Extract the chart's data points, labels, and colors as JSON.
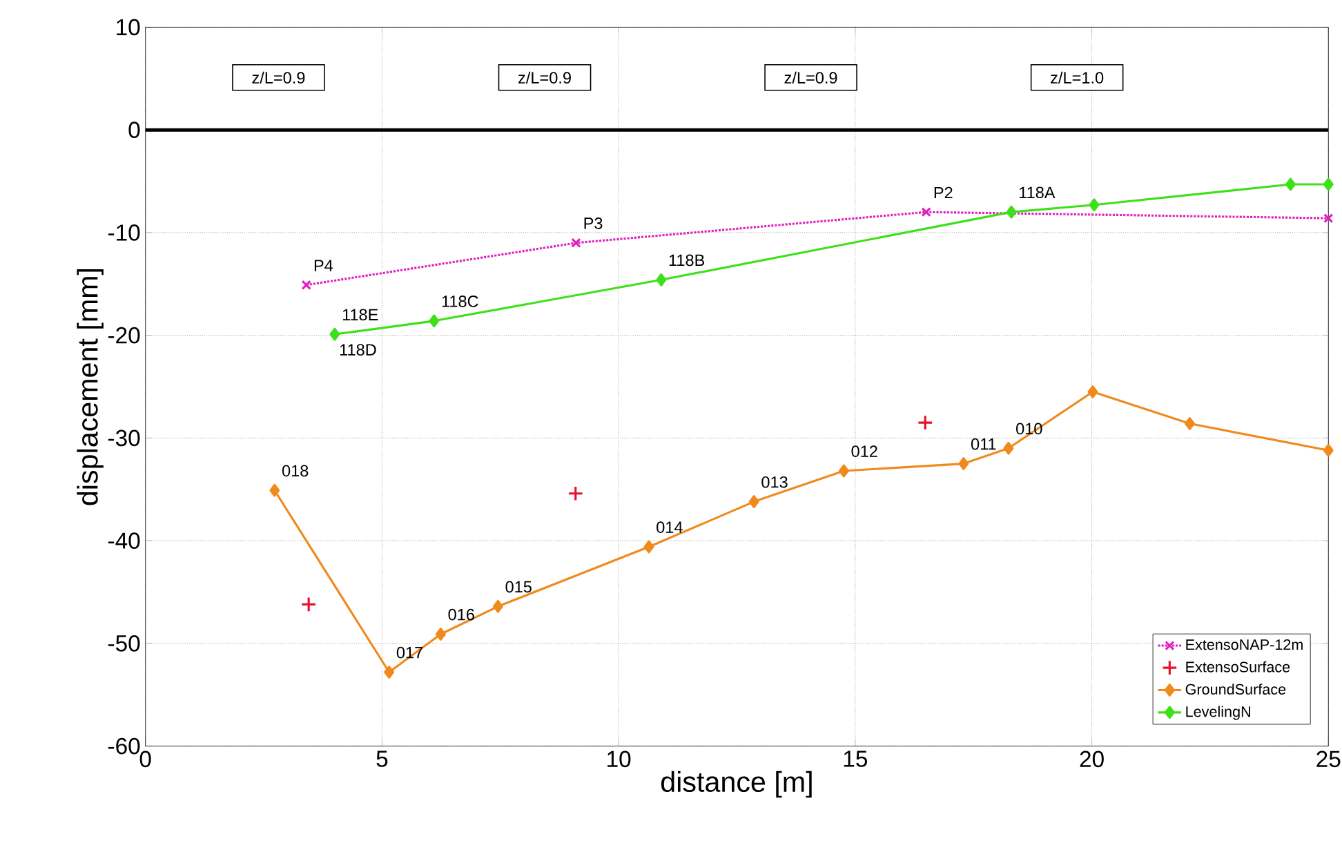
{
  "chart_data": {
    "type": "line",
    "xlabel": "distance [m]",
    "ylabel": "displacement [mm]",
    "xlim": [
      0,
      25
    ],
    "xticks": [
      0,
      5,
      10,
      15,
      20,
      25
    ],
    "ylim": [
      -60,
      10
    ],
    "yticks": [
      -60,
      -50,
      -40,
      -30,
      -20,
      -10,
      0,
      10
    ],
    "grid": true,
    "legend": "bottom right",
    "ref_lines": [
      {
        "axis": "y",
        "value": 0,
        "color": "#000000"
      }
    ],
    "series": [
      {
        "name": "ExtensoNAP-12m",
        "color": "#e020c0",
        "marker": "cross",
        "line_style": "dotted",
        "x": [
          3.4,
          9.1,
          16.5,
          25
        ],
        "values": [
          -15.1,
          -11.0,
          -8.0,
          -8.6
        ]
      },
      {
        "name": "ExtensoSurface",
        "type": "scatter",
        "color": "#e8102a",
        "marker": "cross",
        "x": [
          3.45,
          9.09,
          16.48
        ],
        "values": [
          -46.2,
          -35.4,
          -28.5
        ]
      },
      {
        "name": "GroundSurface",
        "color": "#f08a1c",
        "marker": "diamond",
        "line_style": "solid",
        "x": [
          2.73,
          5.15,
          6.24,
          7.45,
          10.64,
          12.86,
          14.76,
          17.29,
          18.24,
          20.02,
          22.07,
          25
        ],
        "values": [
          -35.1,
          -52.8,
          -49.1,
          -46.4,
          -40.6,
          -36.2,
          -33.2,
          -32.5,
          -31.0,
          -25.5,
          -28.6,
          -31.2
        ]
      },
      {
        "name": "LevelingN",
        "color": "#3ee01a",
        "marker": "diamond",
        "line_style": "solid",
        "x": [
          4.0,
          6.1,
          10.9,
          18.3,
          20.05,
          24.2,
          25
        ],
        "values": [
          -19.9,
          -18.6,
          -14.6,
          -8.0,
          -7.3,
          -5.3,
          -5.3
        ]
      }
    ],
    "annotations": [
      "z/L=0.9",
      "z/L=0.9",
      "z/L=0.9",
      "z/L=1.0",
      {
        "text": "P4",
        "x": 3.4,
        "y": -15.1
      },
      {
        "text": "P3",
        "x": 9.1,
        "y": -11.0
      },
      {
        "text": "P2",
        "x": 16.5,
        "y": -8.0
      },
      {
        "text": "118A",
        "x": 18.3,
        "y": -8.0
      },
      {
        "text": "118B",
        "x": 10.9,
        "y": -14.6
      },
      {
        "text": "118C",
        "x": 6.1,
        "y": -18.6
      },
      {
        "text": "118E",
        "x": 4.0,
        "y": -19.9
      },
      {
        "text": "118D",
        "x": 4.0,
        "y": -19.9
      },
      {
        "text": "018",
        "x": 2.73,
        "y": -35.1
      },
      {
        "text": "017",
        "x": 5.15,
        "y": -52.8
      },
      {
        "text": "016",
        "x": 6.24,
        "y": -49.1
      },
      {
        "text": "015",
        "x": 7.45,
        "y": -46.4
      },
      {
        "text": "014",
        "x": 10.64,
        "y": -40.6
      },
      {
        "text": "013",
        "x": 12.86,
        "y": -36.2
      },
      {
        "text": "012",
        "x": 14.76,
        "y": -33.2
      },
      {
        "text": "011",
        "x": 17.29,
        "y": -32.5
      },
      {
        "text": "010",
        "x": 18.24,
        "y": -31.0
      }
    ]
  }
}
